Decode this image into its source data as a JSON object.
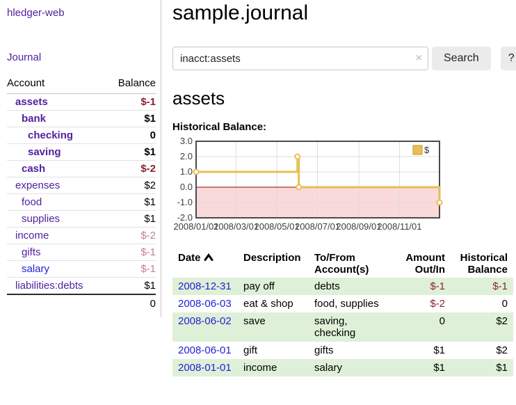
{
  "app": {
    "brand": "hledger-web"
  },
  "colors": {
    "link_purple": "#52219e",
    "link_blue": "#2222d5",
    "negative_strong": "#8b222c",
    "negative_faint": "#c1818c",
    "row_highlight_green": "#dff0d8",
    "chart_line_gold": "#e8bf52",
    "chart_negative_region": "#f9d9da",
    "chart_zero_line": "#990000"
  },
  "sidebar": {
    "journal_link": "Journal",
    "accounts_table": {
      "account_header": "Account",
      "balance_header": "Balance",
      "rows": [
        {
          "name": "assets",
          "balance": "$-1",
          "depth": 1,
          "bold": true,
          "neg": "strong"
        },
        {
          "name": "bank",
          "balance": "$1",
          "depth": 2,
          "bold": true,
          "neg": "none"
        },
        {
          "name": "checking",
          "balance": "0",
          "depth": 3,
          "bold": true,
          "neg": "none"
        },
        {
          "name": "saving",
          "balance": "$1",
          "depth": 3,
          "bold": true,
          "neg": "none"
        },
        {
          "name": "cash",
          "balance": "$-2",
          "depth": 2,
          "bold": true,
          "neg": "strong"
        },
        {
          "name": "expenses",
          "balance": "$2",
          "depth": 1,
          "bold": false,
          "neg": "none"
        },
        {
          "name": "food",
          "balance": "$1",
          "depth": 2,
          "bold": false,
          "neg": "none"
        },
        {
          "name": "supplies",
          "balance": "$1",
          "depth": 2,
          "bold": false,
          "neg": "none"
        },
        {
          "name": "income",
          "balance": "$-2",
          "depth": 1,
          "bold": false,
          "neg": "faint"
        },
        {
          "name": "gifts",
          "balance": "$-1",
          "depth": 2,
          "bold": false,
          "neg": "faint"
        },
        {
          "name": "salary",
          "balance": "$-1",
          "depth": 2,
          "bold": false,
          "neg": "faint",
          "link_color": "blue"
        },
        {
          "name": "liabilities:debts",
          "balance": "$1",
          "depth": 1,
          "bold": false,
          "neg": "none"
        }
      ],
      "total": "0"
    }
  },
  "header": {
    "title": "sample.journal"
  },
  "search": {
    "value": "inacct:assets",
    "clear_icon": "×",
    "search_button": "Search",
    "help_button": "?"
  },
  "account_page": {
    "title": "assets",
    "chart_label": "Historical Balance:"
  },
  "chart_data": {
    "type": "line",
    "subtype": "step",
    "title": "Historical Balance",
    "xlabel": "",
    "ylabel": "",
    "series": [
      {
        "name": "$",
        "points": [
          {
            "date": "2008-01-01",
            "value": 1.0
          },
          {
            "date": "2008-06-01",
            "value": 2.0
          },
          {
            "date": "2008-06-03",
            "value": 0.0
          },
          {
            "date": "2008-12-31",
            "value": -1.0
          }
        ]
      }
    ],
    "x_range": [
      "2008-01-01",
      "2008-12-31"
    ],
    "ylim": [
      -2.0,
      3.0
    ],
    "yticks": [
      "3.0",
      "2.0",
      "1.0",
      "0.0",
      "-1.0",
      "-2.0"
    ],
    "ytick_values": [
      3.0,
      2.0,
      1.0,
      0.0,
      -1.0,
      -2.0
    ],
    "xticks": [
      "2008/01/01",
      "2008/03/01",
      "2008/05/01",
      "2008/07/01",
      "2008/09/01",
      "2008/11/01"
    ],
    "grid": true,
    "legend": {
      "position": "top-right",
      "entries": [
        {
          "label": "$",
          "color": "#e8bf52"
        }
      ]
    }
  },
  "register": {
    "headers": [
      {
        "label": "Date",
        "align": "left",
        "sorted": "asc"
      },
      {
        "label": "Description",
        "align": "left"
      },
      {
        "label": "To/From\nAccount(s)",
        "align": "left"
      },
      {
        "label": "Amount\nOut/In",
        "align": "right"
      },
      {
        "label": "Historical\nBalance",
        "align": "right"
      }
    ],
    "rows": [
      {
        "date": "2008-12-31",
        "description": "pay off",
        "accounts": "debts",
        "amount": "$-1",
        "amount_negative": true,
        "balance": "$-1",
        "balance_negative": true
      },
      {
        "date": "2008-06-03",
        "description": "eat & shop",
        "accounts": "food, supplies",
        "amount": "$-2",
        "amount_negative": true,
        "balance": "0",
        "balance_negative": false
      },
      {
        "date": "2008-06-02",
        "description": "save",
        "accounts": "saving, checking",
        "amount": "0",
        "amount_negative": false,
        "balance": "$2",
        "balance_negative": false
      },
      {
        "date": "2008-06-01",
        "description": "gift",
        "accounts": "gifts",
        "amount": "$1",
        "amount_negative": false,
        "balance": "$2",
        "balance_negative": false
      },
      {
        "date": "2008-01-01",
        "description": "income",
        "accounts": "salary",
        "amount": "$1",
        "amount_negative": false,
        "balance": "$1",
        "balance_negative": false
      }
    ]
  }
}
